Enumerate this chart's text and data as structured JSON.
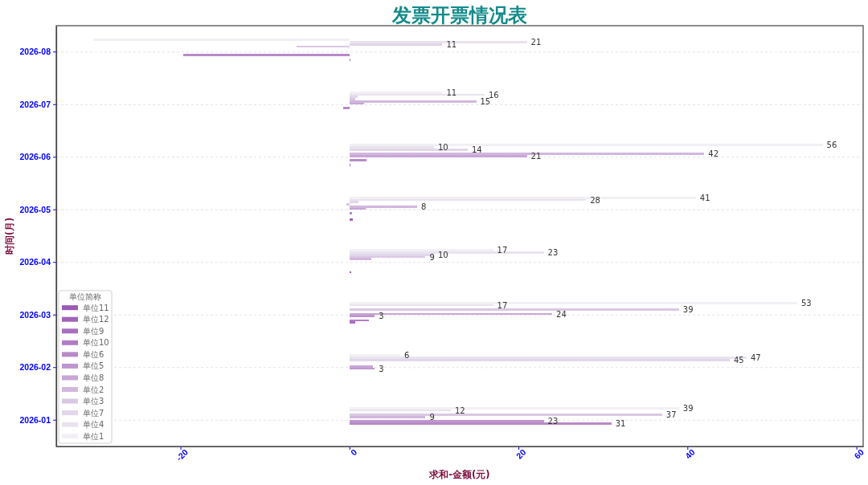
{
  "chart_data": {
    "type": "bar",
    "orientation": "horizontal",
    "title": "发票开票情况表",
    "xlabel": "求和-金额(元)",
    "ylabel": "时间(月)",
    "legend_title": "单位简称",
    "categories": [
      "2026-08",
      "2026-07",
      "2026-06",
      "2026-05",
      "2026-04",
      "2026-03",
      "2026-02",
      "2026-01"
    ],
    "series": [
      {
        "name": "单位1",
        "color": "#f2f0f4",
        "values": [
          -30.3,
          11,
          56,
          41,
          17,
          53,
          6,
          39
        ],
        "value_labels": [
          null,
          "11",
          "56",
          "41",
          "17",
          "53",
          "6",
          "39"
        ]
      },
      {
        "name": "单位4",
        "color": "#e9e3ef",
        "values": [
          21,
          16,
          10,
          28,
          23,
          17,
          47,
          12
        ],
        "value_labels": [
          "21",
          "16",
          "10",
          "28",
          "23",
          "17",
          "47",
          "12"
        ]
      },
      {
        "name": "单位7",
        "color": "#e2d7ea",
        "values": [
          11,
          1.0,
          14,
          1.1,
          10,
          null,
          45,
          null
        ],
        "value_labels": [
          "11",
          null,
          "14",
          null,
          "10",
          null,
          "45",
          null
        ]
      },
      {
        "name": "单位3",
        "color": "#dac8e3",
        "values": [
          -6.3,
          0.7,
          null,
          -0.4,
          9,
          39,
          null,
          37
        ],
        "value_labels": [
          null,
          null,
          null,
          null,
          "9",
          "39",
          null,
          "37"
        ]
      },
      {
        "name": "单位2",
        "color": "#d2b7dd",
        "values": [
          null,
          15,
          42,
          8,
          2.6,
          null,
          null,
          9
        ],
        "value_labels": [
          null,
          "15",
          "42",
          "8",
          null,
          null,
          null,
          "9"
        ]
      },
      {
        "name": "单位8",
        "color": "#c8a6d7",
        "values": [
          null,
          1.7,
          21,
          1.9,
          null,
          24,
          2.8,
          null
        ],
        "value_labels": [
          null,
          null,
          "21",
          null,
          null,
          "24",
          null,
          null
        ]
      },
      {
        "name": "单位5",
        "color": "#bf96cf",
        "values": [
          null,
          null,
          null,
          null,
          null,
          3,
          3,
          23
        ],
        "value_labels": [
          null,
          null,
          null,
          null,
          null,
          "3",
          "3",
          "23"
        ]
      },
      {
        "name": "单位6",
        "color": "#b889c9",
        "values": [
          -19.7,
          -0.7,
          2.0,
          0.3,
          null,
          null,
          null,
          31
        ],
        "value_labels": [
          null,
          null,
          null,
          null,
          null,
          null,
          null,
          "31"
        ]
      },
      {
        "name": "单位10",
        "color": "#b07cc4",
        "values": [
          null,
          null,
          null,
          null,
          null,
          2.3,
          null,
          null
        ],
        "value_labels": [
          null,
          null,
          null,
          null,
          null,
          null,
          null,
          null
        ]
      },
      {
        "name": "单位9",
        "color": "#a96fbf",
        "values": [
          0.1,
          null,
          0.1,
          null,
          null,
          0.7,
          null,
          null
        ],
        "value_labels": [
          null,
          null,
          null,
          null,
          null,
          null,
          null,
          null
        ]
      },
      {
        "name": "单位12",
        "color": "#a263b9",
        "values": [
          null,
          null,
          null,
          0.4,
          0.2,
          null,
          null,
          null
        ],
        "value_labels": [
          null,
          null,
          null,
          null,
          null,
          null,
          null,
          null
        ]
      },
      {
        "name": "单位11",
        "color": "#9b5ab5",
        "values": [
          null,
          null,
          null,
          null,
          null,
          null,
          null,
          null
        ],
        "value_labels": [
          null,
          null,
          null,
          null,
          null,
          null,
          null,
          null
        ]
      }
    ],
    "xlim": [
      -34.7,
      60.8
    ],
    "xticks": [
      -20,
      0,
      20,
      40,
      60
    ],
    "grid": "y",
    "legend": "bottom left"
  }
}
